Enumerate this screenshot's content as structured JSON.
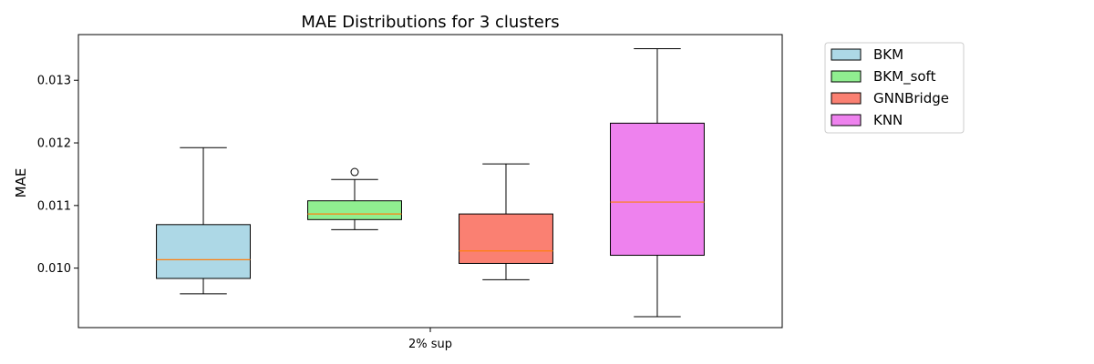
{
  "chart_data": {
    "type": "box",
    "title": "MAE Distributions for 3 clusters",
    "xlabel": "",
    "ylabel": "MAE",
    "categories": [
      "2% sup"
    ],
    "ylim": [
      0.00905,
      0.01373
    ],
    "yticks": [
      {
        "value": 0.01,
        "label": "0.010"
      },
      {
        "value": 0.011,
        "label": "0.011"
      },
      {
        "value": 0.012,
        "label": "0.012"
      },
      {
        "value": 0.013,
        "label": "0.013"
      }
    ],
    "legend_position": "outside-top-right",
    "grid": false,
    "series": [
      {
        "name": "BKM",
        "color": "#add8e6",
        "whisker_low": 0.00959,
        "q1": 0.009835,
        "median": 0.010135,
        "q3": 0.010695,
        "whisker_high": 0.011925,
        "outliers": []
      },
      {
        "name": "BKM_soft",
        "color": "#90ee90",
        "whisker_low": 0.010615,
        "q1": 0.010775,
        "median": 0.010865,
        "q3": 0.011075,
        "whisker_high": 0.011415,
        "outliers": [
          0.011535
        ]
      },
      {
        "name": "GNNBridge",
        "color": "#fa8072",
        "whisker_low": 0.009815,
        "q1": 0.010075,
        "median": 0.010275,
        "q3": 0.010865,
        "whisker_high": 0.011665,
        "outliers": []
      },
      {
        "name": "KNN",
        "color": "#ee82ee",
        "whisker_low": 0.009225,
        "q1": 0.010205,
        "median": 0.011055,
        "q3": 0.012315,
        "whisker_high": 0.013505,
        "outliers": []
      }
    ],
    "median_color": "#ff7f0e"
  }
}
